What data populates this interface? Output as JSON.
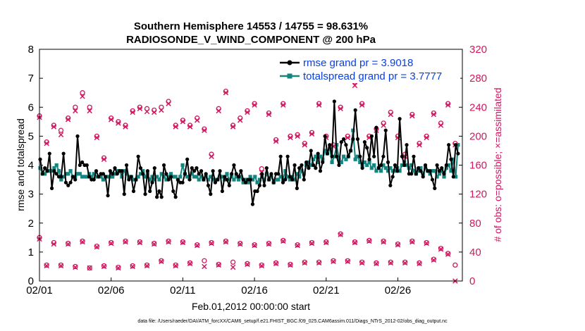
{
  "colors": {
    "rmse": "#000000",
    "spread": "#14857f",
    "obs": "#d1175f",
    "legend_text": "#0a3fe0"
  },
  "chart_data": {
    "type": "line",
    "title": "Southern Hemisphere 14553 / 14755 = 98.631%",
    "subtitle": "RADIOSONDE_V_WIND_COMPONENT @ 200 hPa",
    "xlabel": "Feb.01,2012 00:00:00 start",
    "ylabel": "rmse and totalspread",
    "y2label": "# of obs: o=possible; ×=assimilated",
    "footer": "data file: /Users/raeder/DAI/ATM_forcXX/CAM6_setup/f.e21.FHIST_BGC.f09_025.CAM6assim.011/Diags_NTrS_2012-02/obs_diag_output.nc",
    "xlim": [
      0,
      29.5
    ],
    "ylim": [
      0,
      8
    ],
    "y2lim": [
      0,
      320
    ],
    "xticks": [
      0,
      5,
      10,
      15,
      20,
      25
    ],
    "xtick_labels": [
      "02/01",
      "02/06",
      "02/11",
      "02/16",
      "02/21",
      "02/26"
    ],
    "yticks": [
      0,
      1,
      2,
      3,
      4,
      5,
      6,
      7,
      8
    ],
    "ytick_labels": [
      "0",
      "1",
      "2",
      "3",
      "4",
      "5",
      "6",
      "7",
      "8"
    ],
    "y2ticks": [
      0,
      40,
      80,
      120,
      160,
      200,
      240,
      280,
      320
    ],
    "y2tick_labels": [
      "0",
      "40",
      "80",
      "120",
      "160",
      "200",
      "240",
      "280",
      "320"
    ],
    "grid": false,
    "legend_position": "top-right",
    "series": [
      {
        "name": "rmse grand pr = 3.9018",
        "axis": "left",
        "color": "#000000",
        "values": [
          4.2,
          3.7,
          3.9,
          3.8,
          4.4,
          3.2,
          3.8,
          3.7,
          3.6,
          3.6,
          4.4,
          3.4,
          3.3,
          3.4,
          3.6,
          3.5,
          5.0,
          4.0,
          4.1,
          4.0,
          4.0,
          3.6,
          3.5,
          3.5,
          3.8,
          3.6,
          3.7,
          3.7,
          3.6,
          2.95,
          3.8,
          3.7,
          3.9,
          3.7,
          3.8,
          3.8,
          3.0,
          4.0,
          3.5,
          3.6,
          3.1,
          3.5,
          4.3,
          3.9,
          3.7,
          3.0,
          3.8,
          3.1,
          3.4,
          3.9,
          2.9,
          3.1,
          2.9,
          4.0,
          3.7,
          3.5,
          3.6,
          3.1,
          2.9,
          3.5,
          3.4,
          3.4,
          3.7,
          4.2,
          3.5,
          3.9,
          3.8,
          3.9,
          3.7,
          3.8,
          3.5,
          3.7,
          3.3,
          3.0,
          3.8,
          3.4,
          3.5,
          3.8,
          3.1,
          3.6,
          3.5,
          3.3,
          3.7,
          4.0,
          3.7,
          3.6,
          3.8,
          3.5,
          3.4,
          3.5,
          3.5,
          2.65,
          3.1,
          3.1,
          3.3,
          3.7,
          3.3,
          3.9,
          3.5,
          3.7,
          3.4,
          3.7,
          3.7,
          4.3,
          3.4,
          3.5,
          4.3,
          3.6,
          3.5,
          4.0,
          3.2,
          3.9,
          4.0,
          3.5,
          4.1,
          3.9,
          4.5,
          4.0,
          3.9,
          4.4,
          3.8,
          4.1,
          5.0,
          4.4,
          4.7,
          4.3,
          6.2,
          4.3,
          4.0,
          4.8,
          4.9,
          4.7,
          4.3,
          4.5,
          4.9,
          5.9,
          4.9,
          4.3,
          3.9,
          4.8,
          4.6,
          4.2,
          5.0,
          4.3,
          5.3,
          3.9,
          4.0,
          4.3,
          5.2,
          4.1,
          3.3,
          3.6,
          4.0,
          3.8,
          5.6,
          4.3,
          4.0,
          4.7,
          3.7,
          3.7,
          4.3,
          3.7,
          3.9,
          3.8,
          3.6,
          4.0,
          3.8,
          3.8,
          3.5,
          3.2,
          4.0,
          3.8,
          3.9,
          3.7,
          4.0,
          4.7,
          4.2,
          3.6,
          4.7,
          4.4
        ]
      },
      {
        "name": "totalspread grand pr = 3.7777",
        "axis": "left",
        "color": "#14857f",
        "values": [
          3.9,
          3.7,
          3.7,
          3.8,
          3.8,
          3.8,
          3.9,
          4.0,
          3.8,
          3.5,
          3.6,
          3.7,
          3.7,
          3.8,
          3.6,
          3.6,
          3.7,
          3.7,
          3.6,
          3.6,
          3.6,
          3.7,
          3.6,
          3.7,
          3.6,
          3.6,
          3.6,
          3.5,
          3.6,
          3.6,
          3.6,
          3.6,
          3.7,
          3.8,
          3.8,
          3.6,
          3.8,
          3.7,
          3.6,
          3.6,
          3.5,
          3.5,
          3.6,
          3.7,
          3.8,
          3.6,
          3.7,
          3.5,
          3.6,
          3.5,
          3.6,
          3.5,
          3.7,
          3.6,
          3.5,
          3.6,
          3.7,
          3.6,
          3.6,
          3.5,
          3.6,
          4.0,
          3.7,
          3.6,
          3.6,
          3.7,
          3.6,
          3.6,
          3.5,
          3.6,
          3.5,
          3.6,
          3.5,
          3.6,
          3.5,
          3.5,
          3.5,
          3.6,
          3.6,
          3.5,
          3.7,
          3.5,
          3.6,
          3.5,
          3.6,
          3.5,
          3.6,
          3.4,
          3.5,
          3.4,
          3.6,
          3.5,
          3.6,
          3.4,
          3.5,
          3.6,
          3.5,
          3.7,
          3.5,
          3.6,
          3.4,
          3.5,
          3.5,
          3.6,
          3.5,
          3.8,
          3.6,
          3.5,
          3.6,
          3.5,
          3.7,
          3.6,
          3.8,
          3.7,
          4.0,
          4.1,
          4.0,
          4.2,
          4.3,
          4.1,
          4.3,
          4.2,
          4.5,
          4.4,
          4.6,
          4.1,
          4.3,
          4.7,
          4.2,
          4.1,
          4.3,
          4.2,
          4.3,
          4.5,
          5.2,
          4.2,
          4.3,
          4.1,
          4.0,
          4.1,
          4.0,
          4.1,
          3.9,
          4.0,
          3.8,
          3.9,
          3.8,
          4.0,
          3.9,
          3.8,
          3.9,
          3.8,
          3.8,
          3.9,
          3.8,
          4.0,
          4.1,
          4.0,
          3.9,
          4.0,
          3.8,
          3.7,
          3.8,
          3.9,
          3.7,
          3.9,
          3.8,
          3.7,
          3.8,
          3.8,
          3.6,
          3.7,
          3.8,
          3.6,
          3.9,
          4.0,
          3.8,
          4.2,
          3.6,
          4.7
        ]
      },
      {
        "name": "obs possible",
        "axis": "right",
        "marker": "o",
        "color": "#d1175f",
        "x": [
          0,
          0.5,
          1,
          1.5,
          2,
          2.5,
          3,
          3.5,
          4,
          4.5,
          5,
          5.5,
          6,
          6.5,
          7,
          7.5,
          8,
          8.5,
          9,
          9.5,
          10,
          10.5,
          11,
          11.5,
          12,
          12.5,
          13,
          13.5,
          14,
          14.5,
          15,
          15.5,
          16,
          16.5,
          17,
          17.5,
          18,
          18.5,
          19,
          19.5,
          20,
          20.5,
          21,
          21.5,
          22,
          22.5,
          23,
          23.5,
          24,
          24.5,
          25,
          25.5,
          26,
          26.5,
          27,
          27.5,
          28,
          28.5,
          29
        ],
        "values": [
          60,
          22,
          53,
          22,
          52,
          20,
          55,
          18,
          48,
          21,
          53,
          19,
          55,
          21,
          54,
          22,
          52,
          28,
          55,
          22,
          54,
          25,
          50,
          28,
          53,
          23,
          55,
          26,
          52,
          24,
          50,
          22,
          52,
          25,
          56,
          23,
          50,
          26,
          53,
          26,
          54,
          28,
          65,
          28,
          54,
          26,
          56,
          25,
          55,
          26,
          51,
          26,
          55,
          25,
          53,
          30,
          45,
          38,
          22
        ],
        "x_top": [
          0,
          0.5,
          1,
          1.5,
          2,
          2.5,
          3,
          3.5,
          4,
          4.5,
          5,
          5.5,
          6,
          6.5,
          7,
          7.5,
          8,
          8.5,
          9,
          9.5,
          10,
          10.5,
          11,
          11.5,
          12,
          12.5,
          13,
          13.5,
          14,
          14.5,
          15,
          15.5,
          16,
          16.5,
          17,
          17.5,
          18,
          18.5,
          19,
          19.5,
          20,
          20.5,
          21,
          21.5,
          22,
          22.5,
          23,
          23.5,
          24,
          24.5,
          25,
          25.5,
          26,
          26.5,
          27,
          27.5,
          28,
          28.5,
          29
        ],
        "values_top": [
          228,
          192,
          215,
          208,
          225,
          240,
          260,
          240,
          200,
          170,
          225,
          220,
          215,
          235,
          240,
          238,
          236,
          240,
          248,
          215,
          222,
          215,
          225,
          210,
          175,
          238,
          262,
          215,
          225,
          235,
          245,
          155,
          232,
          195,
          245,
          200,
          202,
          190,
          205,
          245,
          200,
          188,
          240,
          200,
          275,
          245,
          200,
          210,
          218,
          233,
          200,
          175,
          230,
          190,
          200,
          232,
          218,
          245,
          190
        ]
      },
      {
        "name": "obs assimilated",
        "axis": "right",
        "marker": "x",
        "color": "#d1175f",
        "x": [
          0,
          0.5,
          1,
          1.5,
          2,
          2.5,
          3,
          3.5,
          4,
          4.5,
          5,
          5.5,
          6,
          6.5,
          7,
          7.5,
          8,
          8.5,
          9,
          9.5,
          10,
          10.5,
          11,
          11.5,
          12,
          12.5,
          13,
          13.5,
          14,
          14.5,
          15,
          15.5,
          16,
          16.5,
          17,
          17.5,
          18,
          18.5,
          19,
          19.5,
          20,
          20.5,
          21,
          21.5,
          22,
          22.5,
          23,
          23.5,
          24,
          24.5,
          25,
          25.5,
          26,
          26.5,
          27,
          27.5,
          28,
          28.5,
          29
        ],
        "values": [
          58,
          21,
          51,
          21,
          51,
          19,
          54,
          18,
          47,
          20,
          52,
          18,
          54,
          20,
          53,
          21,
          51,
          27,
          54,
          21,
          53,
          24,
          49,
          20,
          52,
          22,
          54,
          19,
          51,
          23,
          49,
          21,
          51,
          24,
          55,
          22,
          49,
          25,
          52,
          25,
          53,
          27,
          64,
          27,
          53,
          25,
          55,
          24,
          54,
          25,
          50,
          25,
          54,
          24,
          52,
          29,
          44,
          37,
          0
        ],
        "x_top": [
          0,
          0.5,
          1,
          1.5,
          2,
          2.5,
          3,
          3.5,
          4,
          4.5,
          5,
          5.5,
          6,
          6.5,
          7,
          7.5,
          8,
          8.5,
          9,
          9.5,
          10,
          10.5,
          11,
          11.5,
          12,
          12.5,
          13,
          13.5,
          14,
          14.5,
          15,
          15.5,
          16,
          16.5,
          17,
          17.5,
          18,
          18.5,
          19,
          19.5,
          20,
          20.5,
          21,
          21.5,
          22,
          22.5,
          23,
          23.5,
          24,
          24.5,
          25,
          25.5,
          26,
          26.5,
          27,
          27.5,
          28,
          28.5,
          29
        ],
        "values_top": [
          226,
          190,
          213,
          202,
          223,
          235,
          255,
          235,
          198,
          168,
          223,
          218,
          213,
          233,
          238,
          234,
          233,
          236,
          245,
          213,
          220,
          213,
          222,
          208,
          172,
          235,
          260,
          213,
          222,
          233,
          243,
          150,
          230,
          193,
          243,
          198,
          200,
          188,
          203,
          243,
          198,
          186,
          238,
          198,
          270,
          243,
          198,
          208,
          215,
          230,
          198,
          172,
          228,
          188,
          198,
          230,
          215,
          243,
          188
        ]
      }
    ]
  }
}
